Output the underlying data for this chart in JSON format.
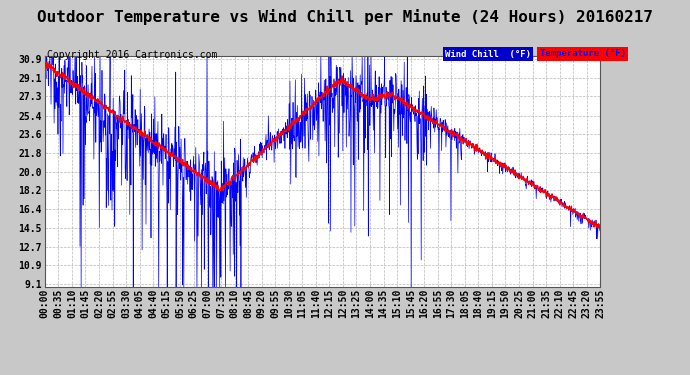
{
  "title": "Outdoor Temperature vs Wind Chill per Minute (24 Hours) 20160217",
  "copyright": "Copyright 2016 Cartronics.com",
  "background_color": "#c8c8c8",
  "plot_bg_color": "#ffffff",
  "grid_color": "#b0b0b0",
  "y_ticks": [
    9.1,
    10.9,
    12.7,
    14.5,
    16.4,
    18.2,
    20.0,
    21.8,
    23.6,
    25.4,
    27.3,
    29.1,
    30.9
  ],
  "y_min": 9.1,
  "y_max": 30.9,
  "wind_chill_line_color": "#ff0000",
  "temp_line_color": "#0000ff",
  "title_fontsize": 11.5,
  "copyright_fontsize": 7,
  "tick_fontsize": 7,
  "x_tick_labels": [
    "00:00",
    "00:35",
    "01:10",
    "01:45",
    "02:20",
    "02:55",
    "03:30",
    "04:05",
    "04:40",
    "05:15",
    "05:50",
    "06:25",
    "07:00",
    "07:35",
    "08:10",
    "08:45",
    "09:20",
    "09:55",
    "10:30",
    "11:05",
    "11:40",
    "12:15",
    "12:50",
    "13:25",
    "14:00",
    "14:35",
    "15:10",
    "15:45",
    "16:20",
    "16:55",
    "17:30",
    "18:05",
    "18:40",
    "19:15",
    "19:50",
    "20:25",
    "21:00",
    "21:35",
    "22:10",
    "22:45",
    "23:20",
    "23:55"
  ],
  "wc_label": "Wind Chill  (°F)",
  "temp_label": "Temperature (°F)"
}
